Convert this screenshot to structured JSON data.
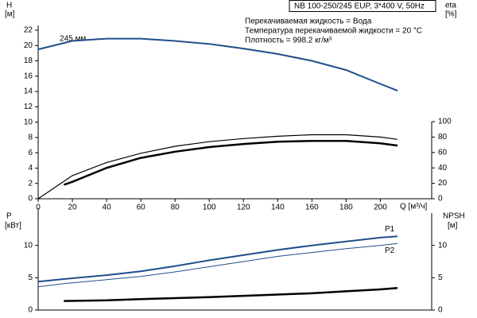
{
  "chart_data": [
    {
      "type": "line",
      "model": "NB 100-250/245 EUP, 3*400 V, 50Hz",
      "notes": [
        "Перекачиваемая жидкость = Вода",
        "Температура перекачиваемой жидкости = 20 °C",
        "Плотность = 998.2 кг/м³"
      ],
      "y_label": "H",
      "y_unit": "[м]",
      "y2_label": "eta",
      "y2_unit": "[%]",
      "x_label": "Q [м³/ч]",
      "annotation": "245 мм",
      "xlim": [
        0,
        230
      ],
      "xticks": [
        0,
        20,
        40,
        60,
        80,
        100,
        120,
        140,
        160,
        180,
        200
      ],
      "ylim": [
        0,
        22
      ],
      "yticks": [
        0,
        2,
        4,
        6,
        8,
        10,
        12,
        14,
        16,
        18,
        20,
        22
      ],
      "y2lim": [
        0,
        100
      ],
      "y2ticks": [
        0,
        20,
        40,
        60,
        80,
        100
      ],
      "series": [
        {
          "color": "#1f4e8c",
          "width": 2,
          "x": [
            0,
            20,
            40,
            60,
            80,
            100,
            120,
            140,
            160,
            180,
            200,
            210
          ],
          "values": [
            19.5,
            20.6,
            20.9,
            20.9,
            20.6,
            20.2,
            19.6,
            18.9,
            18.0,
            16.8,
            15.0,
            14.1
          ]
        },
        {
          "color": "#000000",
          "width": 1.2,
          "axis": "y2",
          "x": [
            0,
            20,
            40,
            60,
            80,
            100,
            120,
            140,
            160,
            180,
            200,
            210
          ],
          "values": [
            0,
            30,
            47,
            59,
            68,
            74,
            78,
            81,
            83,
            83,
            80,
            77
          ]
        },
        {
          "color": "#000000",
          "width": 2.5,
          "axis": "y2",
          "x": [
            15,
            20,
            40,
            60,
            80,
            100,
            120,
            140,
            160,
            180,
            200,
            210
          ],
          "values": [
            18,
            22,
            40,
            53,
            61,
            67,
            71,
            74,
            75,
            75,
            72,
            69
          ]
        }
      ]
    },
    {
      "type": "line",
      "y_label": "P",
      "y_unit": "[кВт]",
      "y2_label": "NPSH",
      "y2_unit": "[м]",
      "xlim": [
        0,
        230
      ],
      "ylim": [
        0,
        15
      ],
      "yticks": [
        0,
        5,
        10
      ],
      "y2lim": [
        0,
        15
      ],
      "y2ticks": [
        0,
        5,
        10
      ],
      "series": [
        {
          "name": "P1",
          "color": "#1f4e8c",
          "width": 2,
          "x": [
            0,
            15,
            40,
            60,
            80,
            100,
            120,
            140,
            160,
            180,
            200,
            210
          ],
          "values": [
            4.4,
            4.8,
            5.4,
            6.0,
            6.8,
            7.7,
            8.5,
            9.3,
            10.0,
            10.6,
            11.2,
            11.4
          ]
        },
        {
          "name": "P2",
          "color": "#1f4e8c",
          "width": 1,
          "x": [
            0,
            15,
            40,
            60,
            80,
            100,
            120,
            140,
            160,
            180,
            200,
            210
          ],
          "values": [
            3.6,
            4.1,
            4.7,
            5.2,
            5.9,
            6.7,
            7.5,
            8.3,
            8.9,
            9.5,
            10.0,
            10.3
          ]
        },
        {
          "color": "#000000",
          "width": 2.5,
          "axis": "y2",
          "x": [
            15,
            40,
            60,
            80,
            100,
            120,
            140,
            160,
            180,
            200,
            210
          ],
          "values": [
            1.4,
            1.5,
            1.7,
            1.85,
            2.0,
            2.2,
            2.4,
            2.6,
            2.9,
            3.2,
            3.4
          ]
        }
      ]
    }
  ]
}
